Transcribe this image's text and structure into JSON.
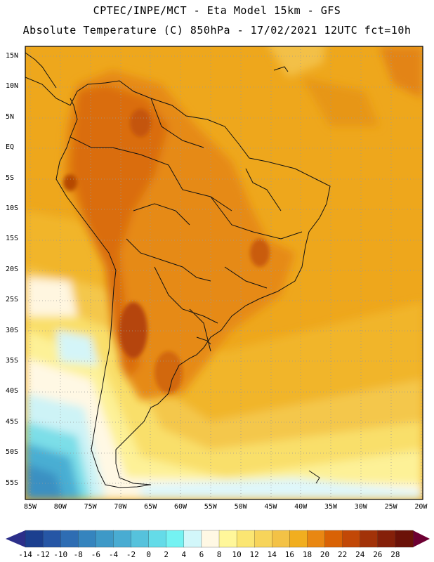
{
  "title": {
    "line1": "CPTEC/INPE/MCT -  Eta Model 15km - GFS",
    "line2": "Absolute Temperature (C) 850hPa - 17/02/2021 12UTC fct=10h"
  },
  "lat_labels": [
    "15N",
    "10N",
    "5N",
    "EQ",
    "5S",
    "10S",
    "15S",
    "20S",
    "25S",
    "30S",
    "35S",
    "40S",
    "45S",
    "50S",
    "55S"
  ],
  "lon_labels": [
    "85W",
    "80W",
    "75W",
    "70W",
    "65W",
    "60W",
    "55W",
    "50W",
    "45W",
    "40W",
    "35W",
    "30W",
    "25W",
    "20W"
  ],
  "colorbar": {
    "labels": [
      "-14",
      "-12",
      "-10",
      "-8",
      "-6",
      "-4",
      "-2",
      "0",
      "2",
      "4",
      "6",
      "8",
      "10",
      "12",
      "14",
      "16",
      "18",
      "20",
      "22",
      "24",
      "26",
      "28"
    ],
    "colors": [
      "#1b3f8f",
      "#2656a5",
      "#2e6db3",
      "#3584be",
      "#3e99c7",
      "#49acd2",
      "#56c2dc",
      "#64dbe8",
      "#74f2f2",
      "#d2f7fa",
      "#fff8e4",
      "#fff79a",
      "#fbe672",
      "#f7d45a",
      "#f3c246",
      "#f1ae1f",
      "#e98712",
      "#d96205",
      "#c24807",
      "#a23208",
      "#852009",
      "#6b1208"
    ],
    "left_arrow_color": "#2c2f8a",
    "right_arrow_color": "#6d0032"
  }
}
